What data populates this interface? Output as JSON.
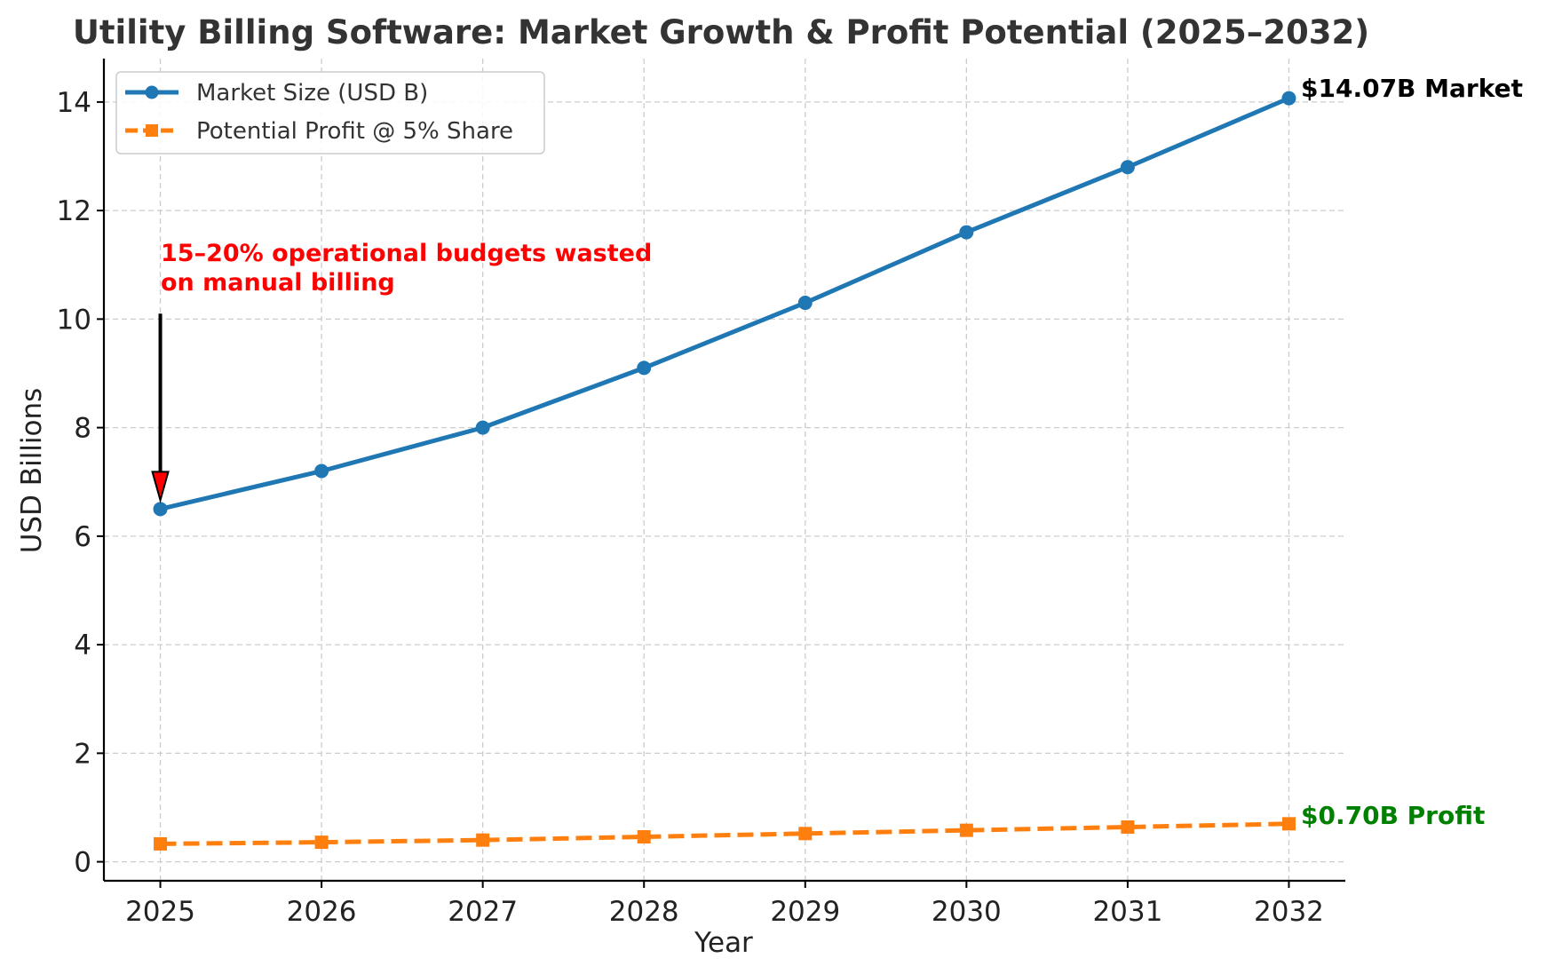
{
  "chart_data": {
    "type": "line",
    "title": "Utility Billing Software: Market Growth & Profit Potential (2025–2032)",
    "xlabel": "Year",
    "ylabel": "USD Billions",
    "x": [
      2025,
      2026,
      2027,
      2028,
      2029,
      2030,
      2031,
      2032
    ],
    "x_tick_labels": [
      "2025",
      "2026",
      "2027",
      "2028",
      "2029",
      "2030",
      "2031",
      "2032"
    ],
    "y_ticks": [
      0,
      2,
      4,
      6,
      8,
      10,
      12,
      14
    ],
    "y_tick_labels": [
      "0",
      "2",
      "4",
      "6",
      "8",
      "10",
      "12",
      "14"
    ],
    "ylim": [
      -0.35,
      14.8
    ],
    "xlim": [
      2024.65,
      2032.35
    ],
    "grid": true,
    "legend_position": "top-left",
    "series": [
      {
        "name": "Market Size (USD B)",
        "values": [
          6.5,
          7.2,
          8.0,
          9.1,
          10.3,
          11.6,
          12.8,
          14.07
        ],
        "color": "#1f77b4",
        "style": "solid",
        "marker": "circle"
      },
      {
        "name": "Potential Profit @ 5% Share",
        "values": [
          0.33,
          0.36,
          0.4,
          0.46,
          0.52,
          0.58,
          0.64,
          0.7
        ],
        "color": "#ff7f0e",
        "style": "dashed",
        "marker": "square"
      }
    ],
    "annotations": {
      "waste_line1": "15–20% operational budgets wasted",
      "waste_line2": "on manual billing",
      "waste_color": "#ff0000",
      "waste_arrow_from": {
        "x": 2025,
        "y": 10.1
      },
      "waste_arrow_to": {
        "x": 2025,
        "y": 6.5
      },
      "market_end": "$14.07B Market",
      "market_end_color": "#000000",
      "profit_end": "$0.70B Profit",
      "profit_end_color": "#008000"
    }
  }
}
